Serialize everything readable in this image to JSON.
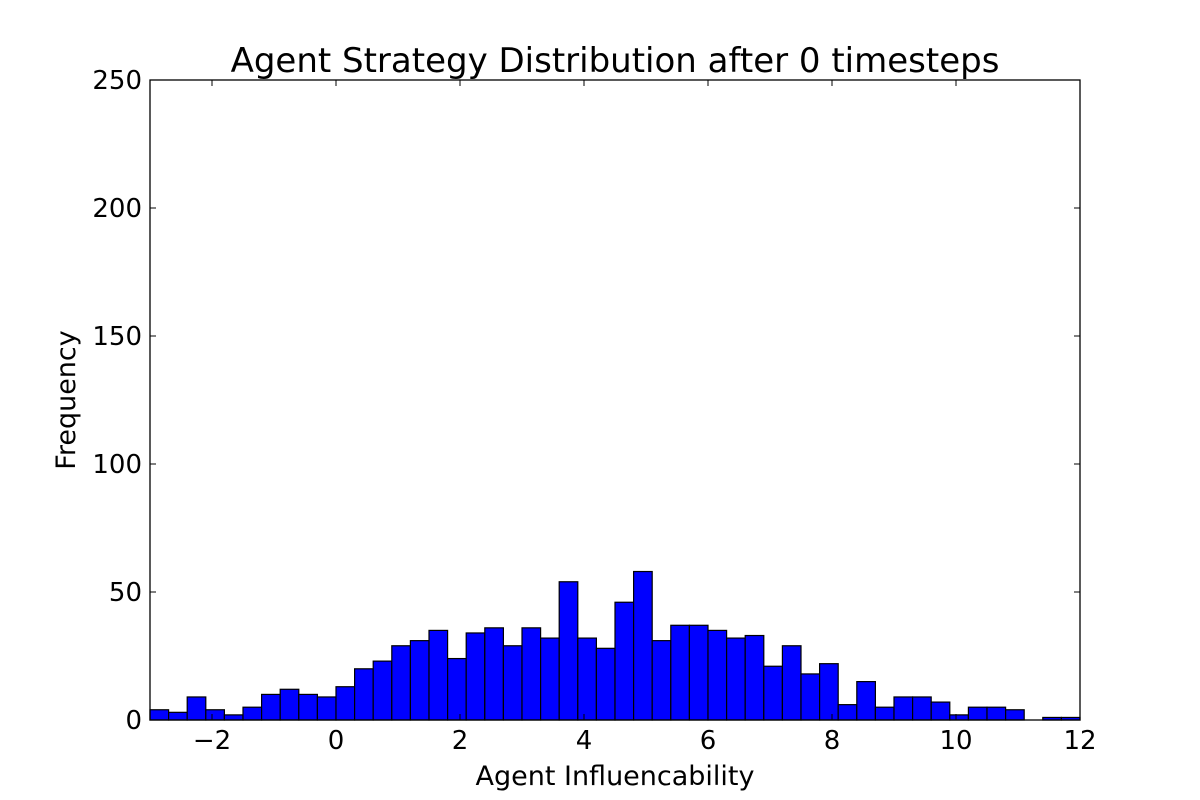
{
  "chart_data": {
    "type": "bar",
    "title": "Agent Strategy Distribution after 0 timesteps",
    "xlabel": "Agent Influencability",
    "ylabel": "Frequency",
    "xlim": [
      -3,
      12
    ],
    "ylim": [
      0,
      250
    ],
    "xticks": [
      -2,
      0,
      2,
      4,
      6,
      8,
      10,
      12
    ],
    "xtick_labels": [
      "−2",
      "0",
      "2",
      "4",
      "6",
      "8",
      "10",
      "12"
    ],
    "yticks": [
      0,
      50,
      100,
      150,
      200,
      250
    ],
    "ytick_labels": [
      "0",
      "50",
      "100",
      "150",
      "200",
      "250"
    ],
    "grid": false,
    "bar_color": "#0000ff",
    "edge_color": "#000000",
    "bin_start": -3,
    "bin_width": 0.3,
    "values": [
      4,
      3,
      9,
      4,
      2,
      5,
      10,
      12,
      10,
      9,
      13,
      20,
      23,
      29,
      31,
      35,
      24,
      34,
      36,
      29,
      36,
      32,
      54,
      32,
      28,
      46,
      58,
      31,
      37,
      37,
      35,
      32,
      33,
      21,
      29,
      18,
      22,
      6,
      15,
      5,
      9,
      9,
      7,
      2,
      5,
      5,
      4,
      0,
      1,
      1
    ]
  }
}
